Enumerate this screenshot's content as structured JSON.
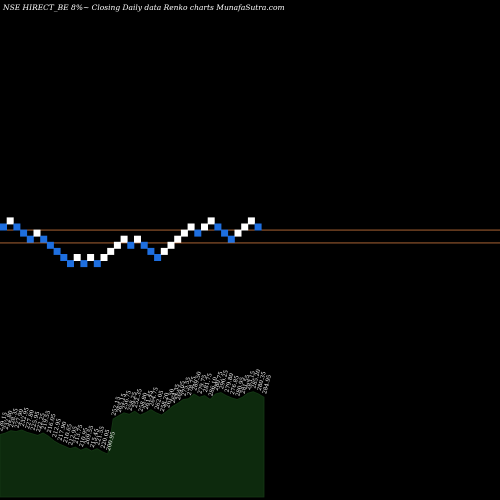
{
  "header": {
    "title": "NSE HIRECT_BE 8%~  Closing Daily data  Renko  charts MunafaSutra.com"
  },
  "chart_data": [
    {
      "type": "renko",
      "bricks": [
        {
          "dir": "down",
          "level": 5
        },
        {
          "dir": "up",
          "level": 6
        },
        {
          "dir": "down",
          "level": 5
        },
        {
          "dir": "down",
          "level": 4
        },
        {
          "dir": "down",
          "level": 3
        },
        {
          "dir": "up",
          "level": 4
        },
        {
          "dir": "down",
          "level": 3
        },
        {
          "dir": "down",
          "level": 2
        },
        {
          "dir": "down",
          "level": 1
        },
        {
          "dir": "down",
          "level": 0
        },
        {
          "dir": "down",
          "level": -1
        },
        {
          "dir": "up",
          "level": 0
        },
        {
          "dir": "down",
          "level": -1
        },
        {
          "dir": "up",
          "level": 0
        },
        {
          "dir": "down",
          "level": -1
        },
        {
          "dir": "up",
          "level": 0
        },
        {
          "dir": "up",
          "level": 1
        },
        {
          "dir": "up",
          "level": 2
        },
        {
          "dir": "up",
          "level": 3
        },
        {
          "dir": "down",
          "level": 2
        },
        {
          "dir": "up",
          "level": 3
        },
        {
          "dir": "down",
          "level": 2
        },
        {
          "dir": "down",
          "level": 1
        },
        {
          "dir": "down",
          "level": 0
        },
        {
          "dir": "up",
          "level": 1
        },
        {
          "dir": "up",
          "level": 2
        },
        {
          "dir": "up",
          "level": 3
        },
        {
          "dir": "up",
          "level": 4
        },
        {
          "dir": "up",
          "level": 5
        },
        {
          "dir": "down",
          "level": 4
        },
        {
          "dir": "up",
          "level": 5
        },
        {
          "dir": "up",
          "level": 6
        },
        {
          "dir": "down",
          "level": 5
        },
        {
          "dir": "down",
          "level": 4
        },
        {
          "dir": "down",
          "level": 3
        },
        {
          "dir": "up",
          "level": 4
        },
        {
          "dir": "up",
          "level": 5
        },
        {
          "dir": "up",
          "level": 6
        },
        {
          "dir": "down",
          "level": 5
        }
      ],
      "reference_lines": [
        {
          "color": "#c0703a",
          "level": 4.5
        },
        {
          "color": "#c0703a",
          "level": 2.4
        }
      ],
      "colors": {
        "up": "#ffffff",
        "down": "#1e6fe0",
        "background": "#000000"
      }
    },
    {
      "type": "area",
      "values": [
        230,
        232,
        235,
        234,
        236,
        233,
        231,
        229,
        232,
        228,
        222,
        218,
        215,
        212,
        214,
        210,
        213,
        209,
        212,
        208,
        205,
        250,
        254,
        258,
        256,
        260,
        255,
        258,
        262,
        258,
        255,
        260,
        266,
        270,
        275,
        276,
        282,
        278,
        280,
        275,
        282,
        284,
        280,
        277,
        275,
        278,
        283,
        285,
        282,
        278
      ],
      "labels": [
        "239.15",
        "232.80",
        "228.35",
        "227.90",
        "232.95",
        "227.80",
        "225.95",
        "222.25",
        "219.55",
        "216.05",
        "212.95",
        "217.90",
        "210.65",
        "212.95",
        "213.75",
        "210.95",
        "209.55",
        "215.45",
        "221.55",
        "220.05",
        "200.95",
        "252.15",
        "265.15",
        "256.75",
        "258.25",
        "252.35",
        "258.80",
        "261.45",
        "264.75",
        "262.05",
        "258.20",
        "261.50",
        "264.35",
        "269.05",
        "275.55",
        "278.75",
        "289.50",
        "279.75",
        "281.75",
        "286.10",
        "280.75",
        "290.25",
        "279.80",
        "276.85",
        "280.95",
        "281.55",
        "283.15",
        "285.20",
        "280.35",
        "284.95"
      ],
      "colors": {
        "fill": "#0d2a0d",
        "line": "#143814"
      }
    }
  ]
}
